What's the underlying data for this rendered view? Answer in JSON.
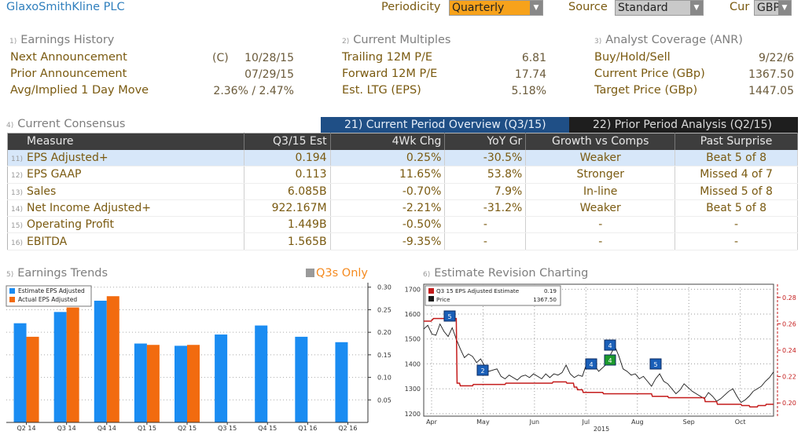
{
  "company": "GlaxoSmithKline PLC",
  "header": {
    "periodicity_label": "Periodicity",
    "periodicity_value": "Quarterly",
    "source_label": "Source",
    "source_value": "Standard",
    "cur_label": "Cur",
    "cur_value": "GBP"
  },
  "sections": {
    "earnings_history": {
      "num": "1)",
      "title": "Earnings History",
      "rows": [
        {
          "label": "Next Announcement",
          "prefix": "(C)",
          "value": "10/28/15"
        },
        {
          "label": "Prior Announcement",
          "prefix": "",
          "value": "07/29/15"
        },
        {
          "label": "Avg/Implied 1 Day Move",
          "prefix": "",
          "value": "2.36% / 2.47%"
        }
      ]
    },
    "current_multiples": {
      "num": "2)",
      "title": "Current Multiples",
      "rows": [
        {
          "label": "Trailing 12M P/E",
          "value": "6.81"
        },
        {
          "label": "Forward 12M P/E",
          "value": "17.74"
        },
        {
          "label": "Est. LTG (EPS)",
          "value": "5.18%"
        }
      ]
    },
    "analyst_coverage": {
      "num": "3)",
      "title": "Analyst Coverage (ANR)",
      "rows": [
        {
          "label": "Buy/Hold/Sell",
          "value": "9/22/6"
        },
        {
          "label": "Current Price (GBp)",
          "value": "1367.50"
        },
        {
          "label": "Target Price (GBp)",
          "value": "1447.05"
        }
      ]
    }
  },
  "consensus": {
    "num": "4)",
    "title": "Current Consensus",
    "tab_current": "21) Current Period Overview (Q3/15)",
    "tab_prior": "22) Prior Period Analysis (Q2/15)",
    "columns": [
      "Measure",
      "Q3/15 Est",
      "4Wk Chg",
      "YoY Gr",
      "Growth vs Comps",
      "Past Surprise"
    ],
    "rows": [
      {
        "n": "11)",
        "measure": "EPS Adjusted+",
        "est": "0.194",
        "chg": "0.25%",
        "chg_sign": "pos",
        "yoy": "-30.5%",
        "yoy_sign": "neg",
        "growth": "Weaker",
        "surprise": "Beat 5 of 8"
      },
      {
        "n": "12)",
        "measure": "EPS GAAP",
        "est": "0.113",
        "chg": "11.65%",
        "chg_sign": "pos",
        "yoy": "53.8%",
        "yoy_sign": "pos",
        "growth": "Stronger",
        "surprise": "Missed 4 of 7"
      },
      {
        "n": "13)",
        "measure": "Sales",
        "est": "6.085B",
        "chg": "-0.70%",
        "chg_sign": "neg",
        "yoy": "7.9%",
        "yoy_sign": "pos",
        "growth": "In-line",
        "surprise": "Missed 5 of 8"
      },
      {
        "n": "14)",
        "measure": "Net Income Adjusted+",
        "est": "922.167M",
        "chg": "-2.21%",
        "chg_sign": "neg",
        "yoy": "-31.2%",
        "yoy_sign": "neg",
        "growth": "Weaker",
        "surprise": "Beat 5 of 8"
      },
      {
        "n": "15)",
        "measure": "Operating Profit",
        "est": "1.449B",
        "chg": "-0.50%",
        "chg_sign": "neg",
        "yoy": "-",
        "yoy_sign": "dash",
        "growth": "-",
        "surprise": "-"
      },
      {
        "n": "16)",
        "measure": "EBITDA",
        "est": "1.565B",
        "chg": "-9.35%",
        "chg_sign": "neg",
        "yoy": "-",
        "yoy_sign": "dash",
        "growth": "-",
        "surprise": "-"
      }
    ]
  },
  "trends": {
    "num": "5)",
    "title": "Earnings Trends",
    "q3s_only": "Q3s Only",
    "colors": {
      "estimate": "#1a8cf2",
      "actual": "#f26b0f"
    }
  },
  "revision": {
    "num": "6)",
    "title": "Estimate Revision Charting",
    "colors": {
      "estimate": "#c41b1b",
      "price": "#1a1a1a"
    }
  },
  "chart_data": [
    {
      "type": "bar",
      "legend": [
        "Estimate EPS Adjusted",
        "Actual EPS Adjusted"
      ],
      "categories": [
        "Q2 14",
        "Q3 14",
        "Q4 14",
        "Q1 15",
        "Q2 15",
        "Q3 15",
        "Q4 15",
        "Q1 16",
        "Q2 16"
      ],
      "series": [
        {
          "name": "Estimate EPS Adjusted",
          "values": [
            0.22,
            0.245,
            0.27,
            0.175,
            0.17,
            0.195,
            0.215,
            0.19,
            0.178
          ]
        },
        {
          "name": "Actual EPS Adjusted",
          "values": [
            0.19,
            0.255,
            0.28,
            0.172,
            0.172,
            null,
            null,
            null,
            null
          ]
        }
      ],
      "yticks": [
        0.05,
        0.1,
        0.15,
        0.2,
        0.25,
        0.3
      ],
      "ylim": [
        0,
        0.31
      ],
      "legend_position": "top-left"
    },
    {
      "type": "line",
      "legend": [
        "Q3 15 EPS Adjusted Estimate",
        "Price"
      ],
      "legend_values": [
        "0.19",
        "1367.50"
      ],
      "x_labels": [
        "Apr",
        "May",
        "Jun",
        "Jul",
        "Aug",
        "Sep",
        "Oct"
      ],
      "x_year": "2015",
      "left_yticks": [
        1200,
        1300,
        1400,
        1500,
        1600,
        1700
      ],
      "right_yticks": [
        0.2,
        0.22,
        0.24,
        0.26,
        0.28
      ],
      "left_ylim": [
        1190,
        1720
      ],
      "right_ylim": [
        0.19,
        0.29
      ],
      "series": [
        {
          "name": "Q3 15 EPS Adjusted Estimate",
          "axis": "right",
          "x": [
            0,
            8,
            9,
            12,
            13,
            23,
            24,
            40,
            41,
            44,
            45,
            60,
            61,
            100,
            101,
            118,
            119,
            158,
            159,
            175,
            176,
            184,
            185,
            188,
            189,
            195,
            196,
            220,
            221,
            242,
            243,
            255,
            256,
            280,
            281,
            300,
            301,
            320,
            321,
            345,
            346,
            360,
            361,
            390,
            391,
            400,
            401,
            410,
            411,
            420,
            421,
            430
          ],
          "y": [
            0.262,
            0.262,
            0.262,
            0.264,
            0.264,
            0.264,
            0.264,
            0.264,
            0.215,
            0.215,
            0.213,
            0.213,
            0.214,
            0.214,
            0.215,
            0.215,
            0.215,
            0.215,
            0.216,
            0.216,
            0.215,
            0.215,
            0.212,
            0.212,
            0.21,
            0.21,
            0.208,
            0.208,
            0.207,
            0.207,
            0.207,
            0.207,
            0.207,
            0.207,
            0.205,
            0.205,
            0.204,
            0.204,
            0.204,
            0.204,
            0.201,
            0.201,
            0.199,
            0.199,
            0.198,
            0.198,
            0.197,
            0.197,
            0.198,
            0.198,
            0.199,
            0.199
          ]
        },
        {
          "name": "Price",
          "axis": "left",
          "x": [
            0,
            5,
            10,
            15,
            20,
            25,
            30,
            35,
            40,
            45,
            50,
            55,
            60,
            65,
            70,
            75,
            80,
            85,
            90,
            95,
            100,
            105,
            110,
            115,
            120,
            125,
            130,
            135,
            140,
            145,
            150,
            155,
            160,
            165,
            170,
            175,
            180,
            185,
            190,
            195,
            200,
            205,
            210,
            215,
            220,
            225,
            230,
            235,
            240,
            245,
            250,
            255,
            260,
            265,
            270,
            275,
            280,
            285,
            290,
            295,
            300,
            305,
            310,
            315,
            320,
            325,
            330,
            335,
            340,
            345,
            350,
            355,
            360,
            365,
            370,
            375,
            380,
            385,
            390,
            395,
            400,
            405,
            410,
            415,
            420,
            425,
            430
          ],
          "y": [
            1540,
            1555,
            1520,
            1515,
            1560,
            1530,
            1510,
            1545,
            1500,
            1460,
            1425,
            1440,
            1430,
            1405,
            1420,
            1390,
            1370,
            1375,
            1380,
            1350,
            1340,
            1355,
            1345,
            1335,
            1350,
            1355,
            1345,
            1360,
            1350,
            1340,
            1360,
            1345,
            1360,
            1355,
            1365,
            1395,
            1360,
            1345,
            1355,
            1350,
            1400,
            1420,
            1395,
            1370,
            1385,
            1400,
            1440,
            1470,
            1430,
            1380,
            1370,
            1355,
            1360,
            1340,
            1350,
            1330,
            1310,
            1340,
            1360,
            1330,
            1320,
            1300,
            1280,
            1295,
            1320,
            1305,
            1290,
            1280,
            1270,
            1260,
            1285,
            1270,
            1250,
            1260,
            1275,
            1290,
            1300,
            1270,
            1245,
            1255,
            1270,
            1290,
            1300,
            1310,
            1330,
            1345,
            1368
          ]
        }
      ],
      "event_markers": [
        "5",
        "2",
        "4",
        "4",
        "4",
        "5"
      ]
    }
  ]
}
